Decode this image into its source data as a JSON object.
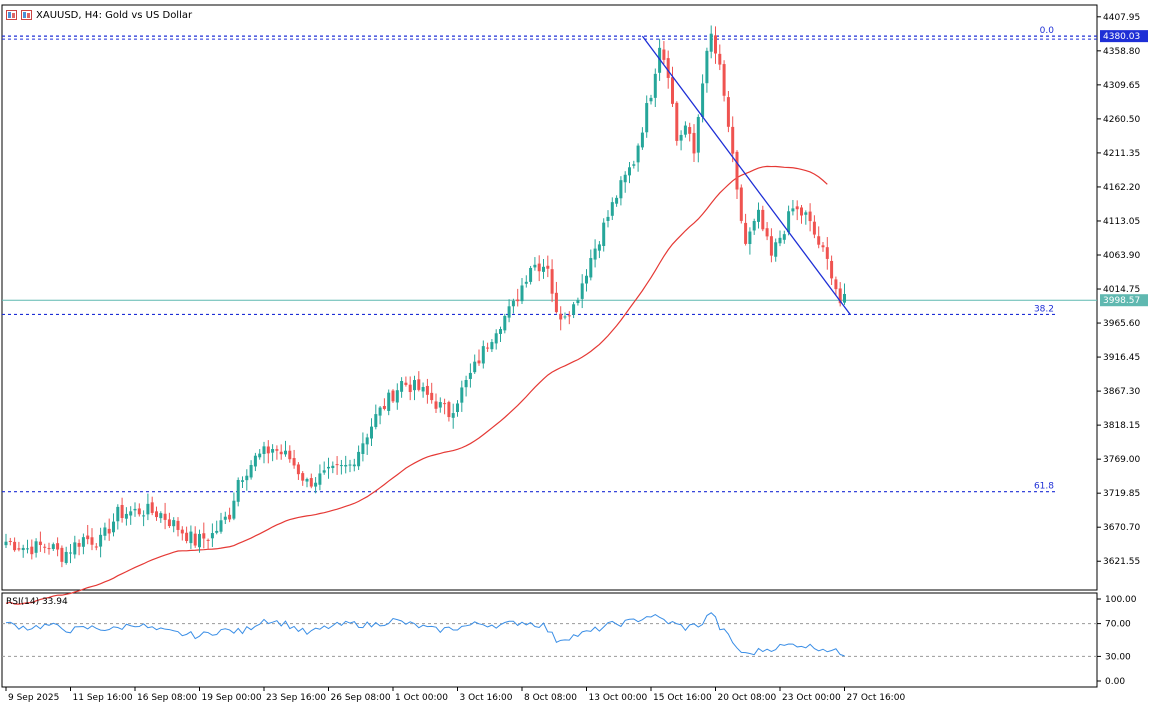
{
  "header": {
    "symbol_line": "XAUUSD, H4:  Gold vs US Dollar"
  },
  "colors": {
    "bull": "#26a69a",
    "bear": "#ef5350",
    "ma": "#e53935",
    "trendline": "#1e2fd6",
    "fib": "#1e2fd6",
    "price_line": "#5fb8b0",
    "rsi_line": "#3a8ee6"
  },
  "indicators": {
    "rsi_label": "RSI(14) 33.94"
  },
  "chart_data": {
    "type": "candlestick",
    "price_axis": {
      "min": 3580,
      "max": 4425,
      "ticks": [
        "4407.95",
        "4358.80",
        "4309.65",
        "4260.50",
        "4211.35",
        "4162.20",
        "4113.05",
        "4063.90",
        "4014.75",
        "3965.60",
        "3916.45",
        "3867.30",
        "3818.15",
        "3769.00",
        "3719.85",
        "3670.70",
        "3621.55"
      ]
    },
    "current_price": "3998.57",
    "high_label": "4380.03",
    "fib_levels": [
      {
        "label": "0.0",
        "price": 4380.03
      },
      {
        "label": "38.2",
        "price": 3978
      },
      {
        "label": "61.8",
        "price": 3722
      }
    ],
    "trendline": {
      "from": [
        148,
        4380
      ],
      "to": [
        194,
        3978
      ]
    },
    "x_labels": [
      {
        "i": 0,
        "label": "9 Sep 2025"
      },
      {
        "i": 15,
        "label": "11 Sep 16:00"
      },
      {
        "i": 30,
        "label": "16 Sep 08:00"
      },
      {
        "i": 45,
        "label": "19 Sep 00:00"
      },
      {
        "i": 60,
        "label": "23 Sep 16:00"
      },
      {
        "i": 75,
        "label": "26 Sep 08:00"
      },
      {
        "i": 90,
        "label": "1 Oct 00:00"
      },
      {
        "i": 105,
        "label": "3 Oct 16:00"
      },
      {
        "i": 120,
        "label": "8 Oct 08:00"
      },
      {
        "i": 135,
        "label": "13 Oct 00:00"
      },
      {
        "i": 150,
        "label": "15 Oct 16:00"
      },
      {
        "i": 165,
        "label": "20 Oct 08:00"
      },
      {
        "i": 180,
        "label": "23 Oct 00:00"
      },
      {
        "i": 195,
        "label": "27 Oct 16:00"
      }
    ],
    "rsi_axis": {
      "ticks": [
        "100.00",
        "70.00",
        "30.00",
        "0.00"
      ],
      "levels": [
        70,
        30
      ]
    },
    "close_anchors": [
      [
        0,
        3650
      ],
      [
        5,
        3640
      ],
      [
        10,
        3645
      ],
      [
        13,
        3630
      ],
      [
        18,
        3655
      ],
      [
        22,
        3650
      ],
      [
        26,
        3690
      ],
      [
        32,
        3695
      ],
      [
        36,
        3690
      ],
      [
        40,
        3670
      ],
      [
        44,
        3650
      ],
      [
        48,
        3660
      ],
      [
        52,
        3690
      ],
      [
        54,
        3740
      ],
      [
        58,
        3770
      ],
      [
        62,
        3785
      ],
      [
        66,
        3770
      ],
      [
        70,
        3735
      ],
      [
        76,
        3750
      ],
      [
        80,
        3760
      ],
      [
        86,
        3830
      ],
      [
        92,
        3880
      ],
      [
        96,
        3870
      ],
      [
        100,
        3850
      ],
      [
        103,
        3835
      ],
      [
        108,
        3890
      ],
      [
        114,
        3960
      ],
      [
        118,
        3990
      ],
      [
        122,
        4050
      ],
      [
        126,
        4050
      ],
      [
        128,
        3975
      ],
      [
        132,
        3990
      ],
      [
        136,
        4060
      ],
      [
        142,
        4150
      ],
      [
        146,
        4200
      ],
      [
        150,
        4300
      ],
      [
        152,
        4370
      ],
      [
        154,
        4330
      ],
      [
        156,
        4230
      ],
      [
        158,
        4250
      ],
      [
        160,
        4210
      ],
      [
        162,
        4320
      ],
      [
        164,
        4380
      ],
      [
        166,
        4330
      ],
      [
        168,
        4250
      ],
      [
        170,
        4150
      ],
      [
        172,
        4080
      ],
      [
        175,
        4120
      ],
      [
        178,
        4060
      ],
      [
        180,
        4090
      ],
      [
        183,
        4130
      ],
      [
        186,
        4120
      ],
      [
        189,
        4080
      ],
      [
        192,
        4040
      ],
      [
        194,
        3995
      ]
    ],
    "rsi_anchors": [
      [
        0,
        70
      ],
      [
        5,
        65
      ],
      [
        10,
        68
      ],
      [
        15,
        62
      ],
      [
        20,
        65
      ],
      [
        25,
        63
      ],
      [
        30,
        70
      ],
      [
        35,
        62
      ],
      [
        40,
        58
      ],
      [
        45,
        55
      ],
      [
        50,
        62
      ],
      [
        55,
        60
      ],
      [
        60,
        75
      ],
      [
        65,
        70
      ],
      [
        70,
        58
      ],
      [
        75,
        66
      ],
      [
        80,
        70
      ],
      [
        85,
        68
      ],
      [
        90,
        74
      ],
      [
        95,
        68
      ],
      [
        100,
        62
      ],
      [
        105,
        65
      ],
      [
        110,
        70
      ],
      [
        115,
        68
      ],
      [
        120,
        72
      ],
      [
        125,
        68
      ],
      [
        128,
        50
      ],
      [
        132,
        55
      ],
      [
        136,
        60
      ],
      [
        140,
        68
      ],
      [
        145,
        72
      ],
      [
        150,
        80
      ],
      [
        154,
        72
      ],
      [
        158,
        65
      ],
      [
        162,
        70
      ],
      [
        164,
        85
      ],
      [
        166,
        65
      ],
      [
        168,
        55
      ],
      [
        170,
        40
      ],
      [
        172,
        32
      ],
      [
        176,
        38
      ],
      [
        180,
        42
      ],
      [
        184,
        45
      ],
      [
        187,
        42
      ],
      [
        190,
        40
      ],
      [
        194,
        34
      ]
    ]
  }
}
